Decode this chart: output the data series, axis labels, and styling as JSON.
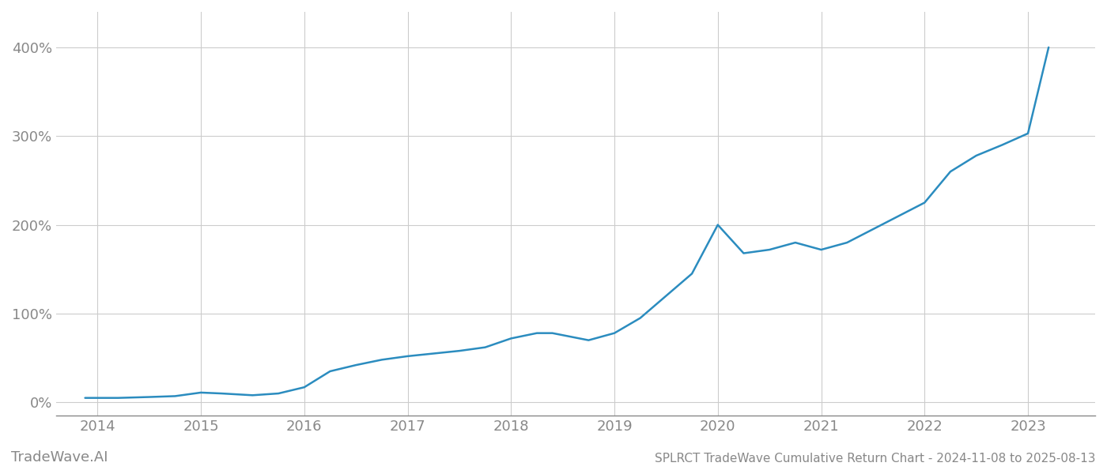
{
  "title": "SPLRCT TradeWave Cumulative Return Chart - 2024-11-08 to 2025-08-13",
  "watermark": "TradeWave.AI",
  "line_color": "#2b8cbf",
  "background_color": "#ffffff",
  "grid_color": "#cccccc",
  "x_years": [
    2014,
    2015,
    2016,
    2017,
    2018,
    2019,
    2020,
    2021,
    2022,
    2023
  ],
  "data_x": [
    2013.88,
    2014.0,
    2014.2,
    2014.5,
    2014.75,
    2015.0,
    2015.2,
    2015.5,
    2015.75,
    2016.0,
    2016.25,
    2016.5,
    2016.75,
    2017.0,
    2017.25,
    2017.5,
    2017.75,
    2018.0,
    2018.25,
    2018.4,
    2018.75,
    2019.0,
    2019.25,
    2019.5,
    2019.75,
    2020.0,
    2020.25,
    2020.5,
    2020.75,
    2021.0,
    2021.25,
    2021.5,
    2021.75,
    2022.0,
    2022.25,
    2022.5,
    2022.75,
    2023.0,
    2023.2
  ],
  "data_y": [
    5,
    5,
    5,
    6,
    7,
    11,
    10,
    8,
    10,
    17,
    35,
    42,
    48,
    52,
    55,
    58,
    62,
    72,
    78,
    78,
    70,
    78,
    95,
    120,
    145,
    200,
    168,
    172,
    180,
    172,
    180,
    195,
    210,
    225,
    260,
    278,
    290,
    303,
    400
  ],
  "ylim": [
    -15,
    440
  ],
  "xlim": [
    2013.6,
    2023.65
  ],
  "yticks": [
    0,
    100,
    200,
    300,
    400
  ],
  "ytick_labels": [
    "0%",
    "100%",
    "200%",
    "300%",
    "400%"
  ],
  "title_fontsize": 11,
  "watermark_fontsize": 13,
  "tick_fontsize": 13,
  "tick_color": "#888888",
  "spine_color": "#888888",
  "line_width": 1.8
}
